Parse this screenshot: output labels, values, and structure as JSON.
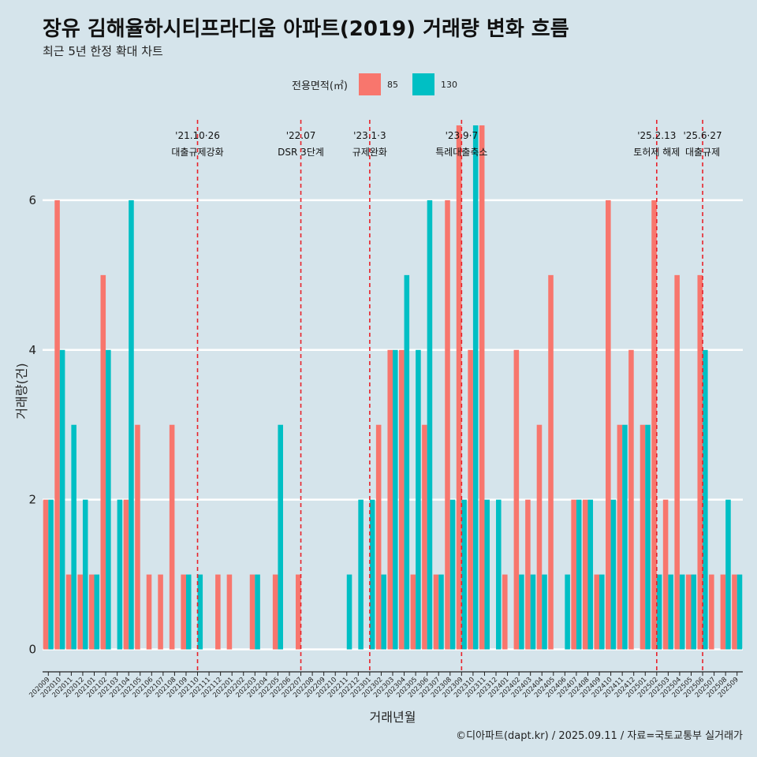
{
  "header": {
    "title": "장유 김해율하시티프라디움 아파트(2019) 거래량 변화 흐름",
    "subtitle": "최근 5년 한정 확대 차트"
  },
  "legend": {
    "title": "전용면적(㎡)",
    "items": [
      {
        "label": "85",
        "color": "#f8766d"
      },
      {
        "label": "130",
        "color": "#00bfc4"
      }
    ]
  },
  "caption": "©디아파트(dapt.kr) / 2025.09.11 / 자료=국토교통부 실거래가",
  "chart_data": {
    "type": "bar",
    "xlabel": "거래년월",
    "ylabel": "거래량(건)",
    "ylim": [
      -0.3,
      7.2
    ],
    "yticks": [
      0,
      2,
      4,
      6
    ],
    "grid": true,
    "legend_position": "top",
    "categories": [
      "202009",
      "202010",
      "202011",
      "202012",
      "202101",
      "202102",
      "202103",
      "202104",
      "202105",
      "202106",
      "202107",
      "202108",
      "202109",
      "202110",
      "202111",
      "202112",
      "202201",
      "202202",
      "202203",
      "202204",
      "202205",
      "202206",
      "202207",
      "202208",
      "202209",
      "202210",
      "202211",
      "202212",
      "202301",
      "202302",
      "202303",
      "202304",
      "202305",
      "202306",
      "202307",
      "202308",
      "202309",
      "202310",
      "202311",
      "202312",
      "202401",
      "202402",
      "202403",
      "202404",
      "202405",
      "202406",
      "202407",
      "202408",
      "202409",
      "202410",
      "202411",
      "202412",
      "202501",
      "202502",
      "202503",
      "202504",
      "202505",
      "202506",
      "202507",
      "202508",
      "202509"
    ],
    "series": [
      {
        "name": "85",
        "color": "#f8766d",
        "values": [
          2,
          6,
          1,
          1,
          1,
          5,
          0,
          2,
          3,
          1,
          1,
          3,
          1,
          0,
          0,
          1,
          1,
          0,
          1,
          0,
          1,
          0,
          1,
          0,
          0,
          0,
          0,
          0,
          0,
          3,
          4,
          4,
          1,
          3,
          1,
          6,
          7,
          4,
          7,
          0,
          1,
          4,
          2,
          3,
          5,
          0,
          2,
          2,
          1,
          6,
          3,
          4,
          3,
          6,
          2,
          5,
          1,
          5,
          1,
          1,
          1
        ]
      },
      {
        "name": "130",
        "color": "#00bfc4",
        "values": [
          2,
          4,
          3,
          2,
          1,
          4,
          2,
          6,
          0,
          0,
          0,
          0,
          1,
          1,
          0,
          0,
          0,
          0,
          1,
          0,
          3,
          0,
          0,
          0,
          0,
          0,
          1,
          2,
          2,
          1,
          4,
          5,
          4,
          6,
          1,
          2,
          2,
          7,
          2,
          2,
          0,
          1,
          1,
          1,
          0,
          1,
          2,
          2,
          1,
          2,
          3,
          0,
          3,
          1,
          1,
          1,
          1,
          4,
          0,
          2,
          1
        ]
      }
    ],
    "annotations": [
      {
        "category": "202110",
        "date": "'21.10·26",
        "label": "대출규제강화"
      },
      {
        "category": "202207",
        "date": "'22.07",
        "label": "DSR 3단계"
      },
      {
        "category": "202301",
        "date": "'23.1·3",
        "label": "규제완화"
      },
      {
        "category": "202309",
        "date": "'23.9·7",
        "label": "특례대출축소"
      },
      {
        "category": "202502",
        "date": "'25.2.13",
        "label": "토허제 해제"
      },
      {
        "category": "202506",
        "date": "'25.6·27",
        "label": "대출규제"
      }
    ]
  }
}
